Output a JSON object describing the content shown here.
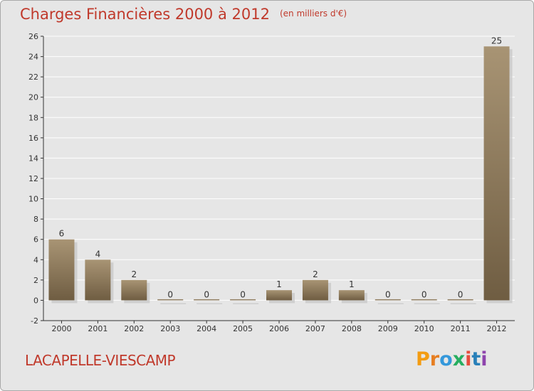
{
  "header": {
    "title": "Charges Financières 2000 à 2012",
    "subtitle": "(en milliers d'€)"
  },
  "footer": {
    "commune": "LACAPELLE-VIESCAMP",
    "logo_text": "Proxiti"
  },
  "colors": {
    "title": "#c0392b",
    "bar_light": "#a89474",
    "bar_dark": "#6f5d42",
    "background": "#e6e6e6",
    "grid": "#ffffff",
    "logo": [
      "#f39c12",
      "#e67e22",
      "#3498db",
      "#27ae60",
      "#e74c3c",
      "#2980b9",
      "#8e44ad"
    ]
  },
  "chart_data": {
    "type": "bar",
    "title": "Charges Financières 2000 à 2012",
    "subtitle": "(en milliers d'€)",
    "categories": [
      "2000",
      "2001",
      "2002",
      "2003",
      "2004",
      "2005",
      "2006",
      "2007",
      "2008",
      "2009",
      "2010",
      "2011",
      "2012"
    ],
    "values": [
      6,
      4,
      2,
      0,
      0,
      0,
      1,
      2,
      1,
      0,
      0,
      0,
      25
    ],
    "data_labels": [
      "6",
      "4",
      "2",
      "0",
      "0",
      "0",
      "1",
      "2",
      "1",
      "0",
      "0",
      "0",
      "25"
    ],
    "ylim": [
      -2,
      26
    ],
    "yticks": [
      -2,
      0,
      2,
      4,
      6,
      8,
      10,
      12,
      14,
      16,
      18,
      20,
      22,
      24,
      26
    ],
    "grid": true,
    "xlabel": "",
    "ylabel": ""
  }
}
